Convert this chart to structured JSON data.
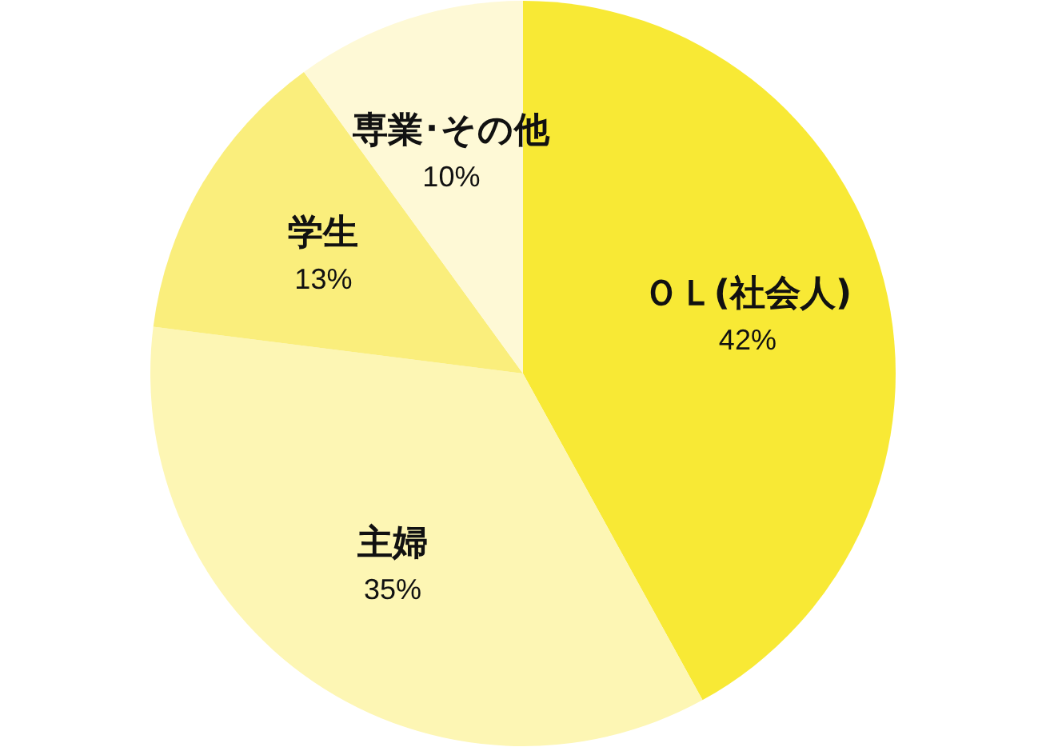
{
  "chart_data": {
    "type": "pie",
    "categories": [
      "ＯＬ(社会人)",
      "主婦",
      "学生",
      "専業･その他"
    ],
    "values": [
      42,
      35,
      13,
      10
    ],
    "colors": [
      "#f8e935",
      "#fdf6b4",
      "#faee7c",
      "#fef9d6"
    ],
    "value_labels": [
      "42%",
      "35%",
      "13%",
      "10%"
    ],
    "legend": false
  }
}
